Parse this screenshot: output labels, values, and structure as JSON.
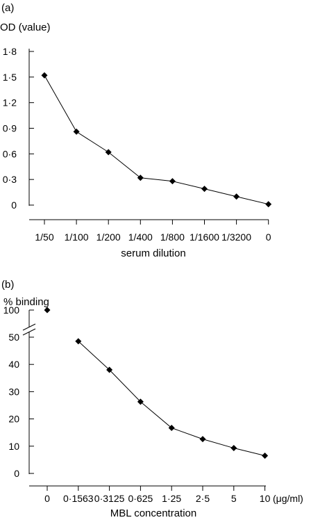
{
  "chart_data": [
    {
      "panel_label": "(a)",
      "type": "line",
      "ylabel": "OD (value)",
      "xlabel": "serum dilution",
      "x_tick_labels": [
        "1/50",
        "1/100",
        "1/200",
        "1/400",
        "1/800",
        "1/1600",
        "1/3200",
        "0"
      ],
      "y_tick_labels": [
        "1·8",
        "1·5",
        "1·2",
        "0·9",
        "0·6",
        "0·3",
        "0"
      ],
      "y_ticks": [
        1.8,
        1.5,
        1.2,
        0.9,
        0.6,
        0.3,
        0
      ],
      "ylim": [
        0,
        1.8
      ],
      "values": [
        1.52,
        0.86,
        0.62,
        0.32,
        0.28,
        0.19,
        0.1,
        0.01
      ]
    },
    {
      "panel_label": "(b)",
      "type": "line",
      "ylabel": "% binding",
      "xlabel": "MBL concentration",
      "x_tick_labels": [
        "0",
        "0·1563",
        "0·3125",
        "0·625",
        "1·25",
        "2·5",
        "5",
        "10"
      ],
      "x_unit_label": "(μg/ml)",
      "y_tick_labels": [
        "100",
        "50",
        "40",
        "30",
        "20",
        "10",
        "0"
      ],
      "y_ticks": [
        50,
        40,
        30,
        20,
        10,
        0
      ],
      "ylim": [
        0,
        50
      ],
      "axis_break": true,
      "isolated_point": {
        "x_index": 0,
        "value": 100
      },
      "connected_x_indices": [
        1,
        2,
        3,
        4,
        5,
        6,
        7
      ],
      "values": [
        48.5,
        38,
        26.3,
        16.7,
        12.6,
        9.3,
        6.5
      ]
    }
  ]
}
